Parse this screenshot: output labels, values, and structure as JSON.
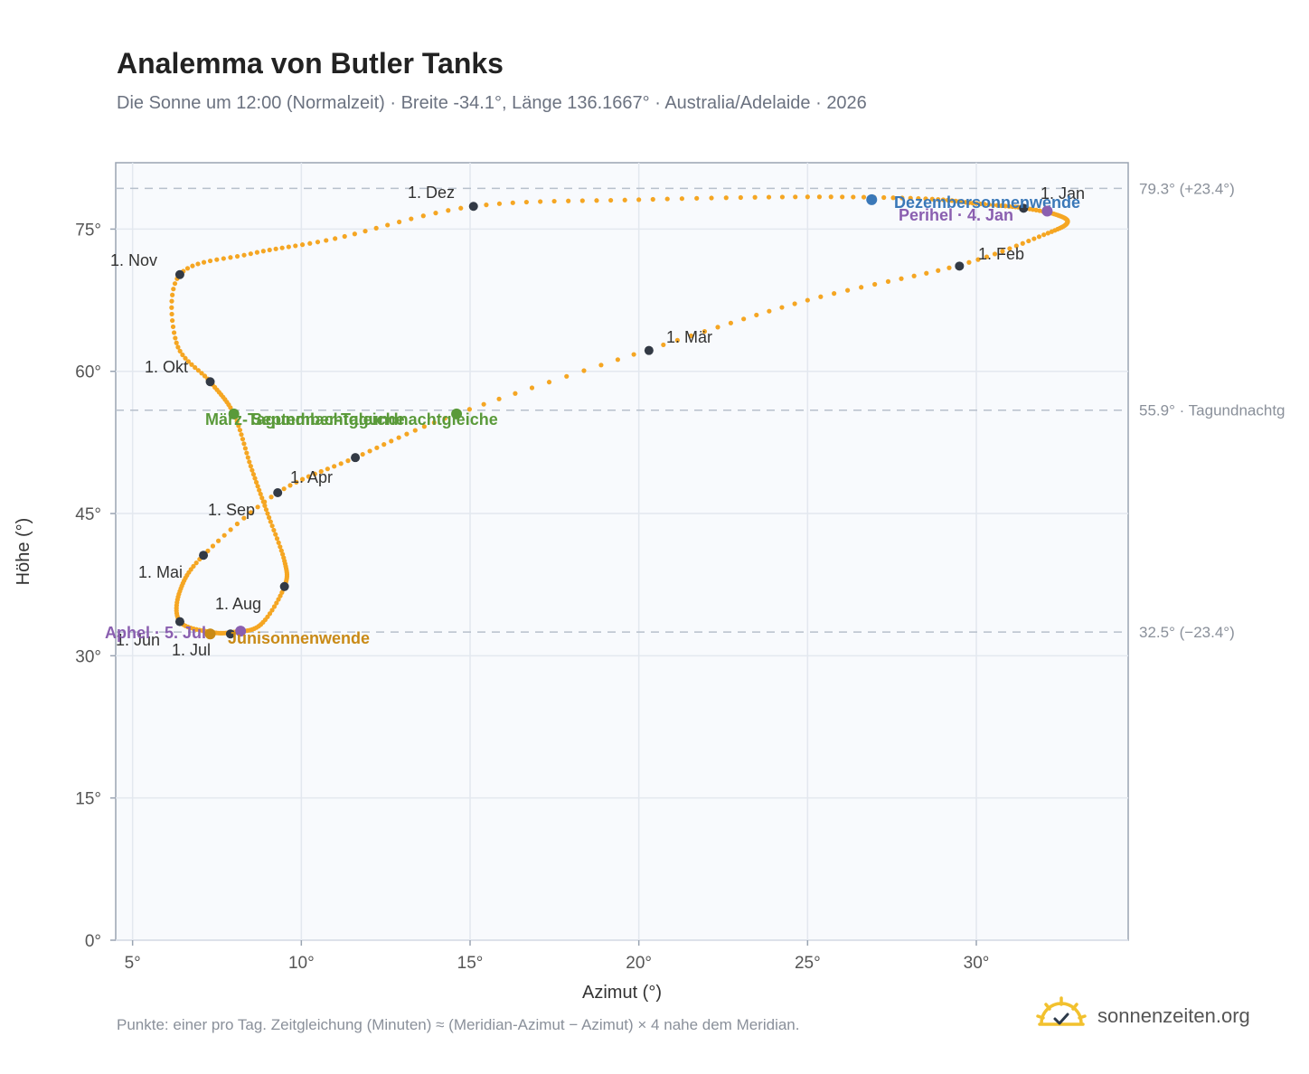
{
  "header": {
    "title": "Analemma von Butler Tanks",
    "subtitle": "Die Sonne um 12:00 (Normalzeit) · Breite -34.1°, Länge 136.1667° · Australia/Adelaide · 2026"
  },
  "footer": {
    "note": "Punkte: einer pro Tag. Zeitgleichung (Minuten) ≈ (Meridian-Azimut − Azimut) × 4 nahe dem Meridian.",
    "brand": "sonnenzeiten.org",
    "brand_icon": "sun-check-icon"
  },
  "chart_data": {
    "type": "scatter",
    "xlabel": "Azimut (°)",
    "ylabel": "Höhe (°)",
    "xlim": [
      4.5,
      34.5
    ],
    "ylim": [
      0,
      82
    ],
    "x_ticks": [
      5,
      10,
      15,
      20,
      25,
      30
    ],
    "x_tick_labels": [
      "5°",
      "10°",
      "15°",
      "20°",
      "25°",
      "30°"
    ],
    "y_ticks": [
      0,
      15,
      30,
      45,
      60,
      75
    ],
    "y_tick_labels": [
      "0°",
      "15°",
      "30°",
      "45°",
      "60°",
      "75°"
    ],
    "grid": true,
    "series_color": "#f5a623",
    "reference_lines": [
      {
        "y": 79.3,
        "label": "79.3° (+23.4°)"
      },
      {
        "y": 55.9,
        "label": "55.9° · Tagundnachtg"
      },
      {
        "y": 32.5,
        "label": "32.5° (−23.4°)"
      }
    ],
    "analemma_path": [
      [
        31.3,
        77.3
      ],
      [
        32.3,
        76.6
      ],
      [
        32.7,
        75.7
      ],
      [
        32.0,
        74.4
      ],
      [
        29.5,
        71.2
      ],
      [
        25.0,
        67.5
      ],
      [
        20.3,
        62.3
      ],
      [
        14.6,
        55.5
      ],
      [
        11.6,
        50.9
      ],
      [
        9.3,
        47.2
      ],
      [
        7.1,
        40.6
      ],
      [
        6.4,
        36.8
      ],
      [
        6.4,
        33.6
      ],
      [
        7.3,
        32.5
      ],
      [
        8.0,
        32.5
      ],
      [
        8.8,
        33.3
      ],
      [
        9.5,
        37.3
      ],
      [
        9.5,
        40.0
      ],
      [
        9.0,
        45.0
      ],
      [
        8.5,
        50.0
      ],
      [
        8.0,
        55.5
      ],
      [
        7.3,
        58.9
      ],
      [
        6.3,
        63.0
      ],
      [
        6.4,
        70.2
      ],
      [
        8.5,
        72.4
      ],
      [
        11.0,
        74.0
      ],
      [
        15.1,
        77.4
      ],
      [
        20.0,
        78.1
      ],
      [
        25.0,
        78.4
      ],
      [
        28.5,
        78.2
      ],
      [
        30.0,
        77.7
      ],
      [
        31.3,
        77.3
      ]
    ],
    "months": [
      {
        "label": "1. Jan",
        "x": 31.4,
        "y": 77.2,
        "lx": 1151,
        "ly": 220
      },
      {
        "label": "1. Feb",
        "x": 29.5,
        "y": 71.1,
        "lx": 1082,
        "ly": 287
      },
      {
        "label": "1. Mär",
        "x": 20.3,
        "y": 62.2,
        "lx": 737,
        "ly": 379
      },
      {
        "label": "1. Apr",
        "x": 11.6,
        "y": 50.9,
        "lx": 321,
        "ly": 534
      },
      {
        "label": "1. Mai",
        "x": 7.1,
        "y": 40.6,
        "lx": 153,
        "ly": 639
      },
      {
        "label": "1. Jun",
        "x": 6.4,
        "y": 33.6,
        "lx": 128,
        "ly": 714
      },
      {
        "label": "1. Jul",
        "x": 7.9,
        "y": 32.3,
        "lx": 190,
        "ly": 725
      },
      {
        "label": "1. Aug",
        "x": 9.5,
        "y": 37.3,
        "lx": 238,
        "ly": 674
      },
      {
        "label": "1. Sep",
        "x": 9.3,
        "y": 47.2,
        "lx": 230,
        "ly": 570
      },
      {
        "label": "1. Okt",
        "x": 7.3,
        "y": 58.9,
        "lx": 160,
        "ly": 412
      },
      {
        "label": "1. Nov",
        "x": 6.4,
        "y": 70.2,
        "lx": 122,
        "ly": 294
      },
      {
        "label": "1. Dez",
        "x": 15.1,
        "y": 77.4,
        "lx": 451,
        "ly": 219
      }
    ],
    "events": [
      {
        "label": "Dezembersonnenwende",
        "x": 26.9,
        "y": 78.1,
        "color": "#3a78b8",
        "lx": 989,
        "ly": 230
      },
      {
        "label": "Perihel · 4. Jan",
        "x": 32.1,
        "y": 76.9,
        "color": "#8a5fb0",
        "lx": 994,
        "ly": 244
      },
      {
        "label": "März-Tagundnachtgleiche",
        "x": 14.6,
        "y": 55.5,
        "color": "#5a9a3a",
        "lx": 227,
        "ly": 470
      },
      {
        "label": "September-Tagundnachtgleiche",
        "x": 8.0,
        "y": 55.5,
        "color": "#5a9a3a",
        "lx": 278,
        "ly": 470
      },
      {
        "label": "Aphel · 5. Jul",
        "x": 8.2,
        "y": 32.6,
        "color": "#8a5fb0",
        "lx": 116,
        "ly": 706
      },
      {
        "label": "Junisonnenwende",
        "x": 7.3,
        "y": 32.3,
        "color": "#c98a16",
        "lx": 252,
        "ly": 712
      }
    ]
  }
}
